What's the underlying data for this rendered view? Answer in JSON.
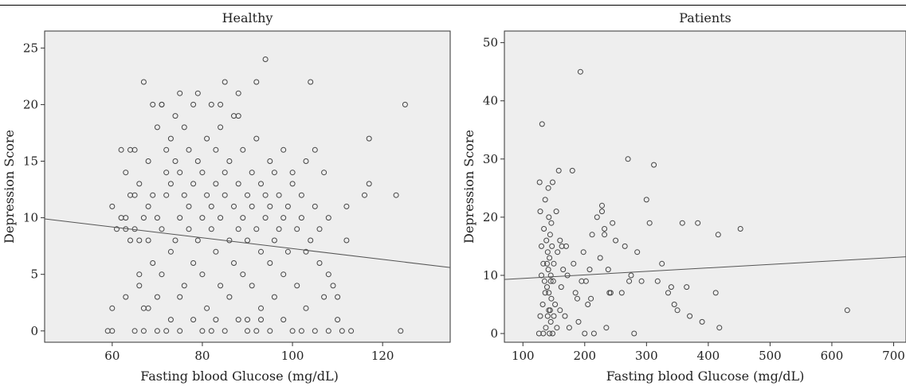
{
  "chart_data": [
    {
      "type": "scatter",
      "title": "Healthy",
      "xlabel": "Fasting blood Glucose (mg/dL)",
      "ylabel": "Depression Score",
      "xlim": [
        45,
        135
      ],
      "ylim": [
        -1,
        26.5
      ],
      "xticks": [
        60,
        80,
        100,
        120
      ],
      "yticks": [
        0,
        5,
        10,
        15,
        20,
        25
      ],
      "grid": false,
      "plot_background": "#eeeeee",
      "marker": "open-circle",
      "fit_line": {
        "x": [
          45,
          135
        ],
        "y": [
          9.9,
          5.6
        ]
      },
      "points": [
        [
          59,
          0
        ],
        [
          60,
          2
        ],
        [
          61,
          9
        ],
        [
          60,
          11
        ],
        [
          62,
          10
        ],
        [
          63,
          10
        ],
        [
          62,
          16
        ],
        [
          63,
          14
        ],
        [
          64,
          16
        ],
        [
          63,
          9
        ],
        [
          64,
          12
        ],
        [
          65,
          12
        ],
        [
          64,
          8
        ],
        [
          65,
          9
        ],
        [
          66,
          8
        ],
        [
          67,
          10
        ],
        [
          66,
          13
        ],
        [
          65,
          16
        ],
        [
          66,
          5
        ],
        [
          66,
          4
        ],
        [
          67,
          2
        ],
        [
          67,
          0
        ],
        [
          68,
          11
        ],
        [
          68,
          15
        ],
        [
          67,
          22
        ],
        [
          69,
          20
        ],
        [
          68,
          8
        ],
        [
          69,
          12
        ],
        [
          69,
          6
        ],
        [
          70,
          10
        ],
        [
          70,
          18
        ],
        [
          71,
          20
        ],
        [
          70,
          3
        ],
        [
          71,
          5
        ],
        [
          72,
          14
        ],
        [
          72,
          12
        ],
        [
          72,
          16
        ],
        [
          71,
          9
        ],
        [
          73,
          7
        ],
        [
          73,
          13
        ],
        [
          73,
          17
        ],
        [
          74,
          8
        ],
        [
          74,
          19
        ],
        [
          74,
          15
        ],
        [
          75,
          14
        ],
        [
          75,
          10
        ],
        [
          75,
          21
        ],
        [
          75,
          3
        ],
        [
          76,
          12
        ],
        [
          76,
          18
        ],
        [
          76,
          4
        ],
        [
          77,
          9
        ],
        [
          77,
          11
        ],
        [
          77,
          16
        ],
        [
          78,
          13
        ],
        [
          78,
          6
        ],
        [
          78,
          20
        ],
        [
          79,
          8
        ],
        [
          79,
          15
        ],
        [
          80,
          10
        ],
        [
          80,
          14
        ],
        [
          80,
          5
        ],
        [
          81,
          12
        ],
        [
          81,
          17
        ],
        [
          81,
          2
        ],
        [
          82,
          9
        ],
        [
          82,
          11
        ],
        [
          82,
          20
        ],
        [
          83,
          7
        ],
        [
          83,
          13
        ],
        [
          83,
          16
        ],
        [
          84,
          10
        ],
        [
          84,
          4
        ],
        [
          84,
          18
        ],
        [
          85,
          12
        ],
        [
          85,
          14
        ],
        [
          85,
          22
        ],
        [
          86,
          8
        ],
        [
          86,
          15
        ],
        [
          86,
          3
        ],
        [
          87,
          11
        ],
        [
          87,
          19
        ],
        [
          87,
          6
        ],
        [
          88,
          9
        ],
        [
          88,
          13
        ],
        [
          88,
          21
        ],
        [
          89,
          10
        ],
        [
          89,
          16
        ],
        [
          89,
          5
        ],
        [
          90,
          12
        ],
        [
          90,
          8
        ],
        [
          90,
          1
        ],
        [
          91,
          14
        ],
        [
          91,
          11
        ],
        [
          91,
          4
        ],
        [
          92,
          9
        ],
        [
          92,
          17
        ],
        [
          92,
          22
        ],
        [
          93,
          13
        ],
        [
          93,
          7
        ],
        [
          93,
          2
        ],
        [
          94,
          10
        ],
        [
          94,
          12
        ],
        [
          94,
          24
        ],
        [
          95,
          11
        ],
        [
          95,
          15
        ],
        [
          95,
          6
        ],
        [
          96,
          8
        ],
        [
          96,
          14
        ],
        [
          96,
          3
        ],
        [
          97,
          12
        ],
        [
          97,
          9
        ],
        [
          98,
          10
        ],
        [
          98,
          16
        ],
        [
          98,
          5
        ],
        [
          99,
          11
        ],
        [
          99,
          7
        ],
        [
          100,
          13
        ],
        [
          100,
          14
        ],
        [
          101,
          9
        ],
        [
          101,
          4
        ],
        [
          102,
          12
        ],
        [
          102,
          10
        ],
        [
          103,
          15
        ],
        [
          103,
          7
        ],
        [
          104,
          8
        ],
        [
          104,
          22
        ],
        [
          105,
          16
        ],
        [
          105,
          11
        ],
        [
          106,
          6
        ],
        [
          106,
          9
        ],
        [
          107,
          14
        ],
        [
          107,
          3
        ],
        [
          108,
          10
        ],
        [
          108,
          5
        ],
        [
          109,
          4
        ],
        [
          110,
          1
        ],
        [
          110,
          3
        ],
        [
          111,
          0
        ],
        [
          112,
          8
        ],
        [
          112,
          11
        ],
        [
          113,
          0
        ],
        [
          116,
          12
        ],
        [
          117,
          13
        ],
        [
          117,
          17
        ],
        [
          123,
          12
        ],
        [
          124,
          0
        ],
        [
          125,
          20
        ],
        [
          60,
          0
        ],
        [
          65,
          0
        ],
        [
          70,
          0
        ],
        [
          75,
          0
        ],
        [
          80,
          0
        ],
        [
          85,
          0
        ],
        [
          90,
          0
        ],
        [
          95,
          0
        ],
        [
          100,
          0
        ],
        [
          105,
          0
        ],
        [
          108,
          0
        ],
        [
          63,
          3
        ],
        [
          68,
          2
        ],
        [
          73,
          1
        ],
        [
          78,
          1
        ],
        [
          83,
          1
        ],
        [
          88,
          1
        ],
        [
          93,
          1
        ],
        [
          98,
          1
        ],
        [
          103,
          2
        ],
        [
          72,
          0
        ],
        [
          82,
          0
        ],
        [
          92,
          0
        ],
        [
          102,
          0
        ],
        [
          79,
          21
        ],
        [
          84,
          20
        ],
        [
          88,
          19
        ],
        [
          71,
          20
        ]
      ]
    },
    {
      "type": "scatter",
      "title": "Patients",
      "xlabel": "Fasting blood Glucose (mg/dL)",
      "ylabel": "Depression Score",
      "xlim": [
        70,
        720
      ],
      "ylim": [
        -1.5,
        52
      ],
      "xticks": [
        100,
        200,
        300,
        400,
        500,
        600,
        700
      ],
      "yticks": [
        0,
        10,
        20,
        30,
        40,
        50
      ],
      "grid": false,
      "plot_background": "#eeeeee",
      "marker": "open-circle",
      "fit_line": {
        "x": [
          70,
          720
        ],
        "y": [
          9.3,
          13.2
        ]
      },
      "points": [
        [
          126,
          0
        ],
        [
          127,
          26
        ],
        [
          128,
          21
        ],
        [
          130,
          15
        ],
        [
          131,
          36
        ],
        [
          132,
          5
        ],
        [
          133,
          12
        ],
        [
          134,
          18
        ],
        [
          135,
          9
        ],
        [
          136,
          23
        ],
        [
          137,
          1
        ],
        [
          138,
          16
        ],
        [
          139,
          8
        ],
        [
          140,
          14
        ],
        [
          140,
          3
        ],
        [
          141,
          25
        ],
        [
          141,
          11
        ],
        [
          142,
          7
        ],
        [
          142,
          20
        ],
        [
          143,
          13
        ],
        [
          143,
          0
        ],
        [
          144,
          17
        ],
        [
          144,
          4
        ],
        [
          145,
          10
        ],
        [
          145,
          2
        ],
        [
          146,
          6
        ],
        [
          146,
          19
        ],
        [
          147,
          15
        ],
        [
          148,
          26
        ],
        [
          149,
          9
        ],
        [
          150,
          12
        ],
        [
          152,
          5
        ],
        [
          154,
          21
        ],
        [
          156,
          14
        ],
        [
          158,
          28
        ],
        [
          160,
          16
        ],
        [
          162,
          8
        ],
        [
          165,
          11
        ],
        [
          168,
          3
        ],
        [
          170,
          15
        ],
        [
          175,
          1
        ],
        [
          180,
          28
        ],
        [
          182,
          12
        ],
        [
          185,
          7
        ],
        [
          190,
          2
        ],
        [
          193,
          45
        ],
        [
          195,
          9
        ],
        [
          198,
          14
        ],
        [
          200,
          0
        ],
        [
          205,
          5
        ],
        [
          208,
          11
        ],
        [
          212,
          17
        ],
        [
          215,
          0
        ],
        [
          220,
          20
        ],
        [
          225,
          13
        ],
        [
          228,
          22
        ],
        [
          232,
          18
        ],
        [
          235,
          1
        ],
        [
          238,
          11
        ],
        [
          240,
          7
        ],
        [
          245,
          19
        ],
        [
          250,
          16
        ],
        [
          260,
          7
        ],
        [
          265,
          15
        ],
        [
          270,
          30
        ],
        [
          275,
          10
        ],
        [
          280,
          0
        ],
        [
          285,
          14
        ],
        [
          292,
          9
        ],
        [
          300,
          23
        ],
        [
          305,
          19
        ],
        [
          312,
          29
        ],
        [
          318,
          9
        ],
        [
          325,
          12
        ],
        [
          335,
          7
        ],
        [
          340,
          8
        ],
        [
          345,
          5
        ],
        [
          350,
          4
        ],
        [
          358,
          19
        ],
        [
          365,
          8
        ],
        [
          370,
          3
        ],
        [
          383,
          19
        ],
        [
          390,
          2
        ],
        [
          412,
          7
        ],
        [
          416,
          17
        ],
        [
          418,
          1
        ],
        [
          452,
          18
        ],
        [
          625,
          4
        ],
        [
          128,
          3
        ],
        [
          130,
          10
        ],
        [
          133,
          0
        ],
        [
          136,
          7
        ],
        [
          139,
          12
        ],
        [
          142,
          4
        ],
        [
          145,
          9
        ],
        [
          148,
          0
        ],
        [
          150,
          3
        ],
        [
          155,
          1
        ],
        [
          160,
          4
        ],
        [
          163,
          15
        ],
        [
          172,
          10
        ],
        [
          188,
          6
        ],
        [
          202,
          9
        ],
        [
          210,
          6
        ],
        [
          228,
          21
        ],
        [
          232,
          17
        ],
        [
          242,
          7
        ],
        [
          272,
          9
        ]
      ]
    }
  ]
}
